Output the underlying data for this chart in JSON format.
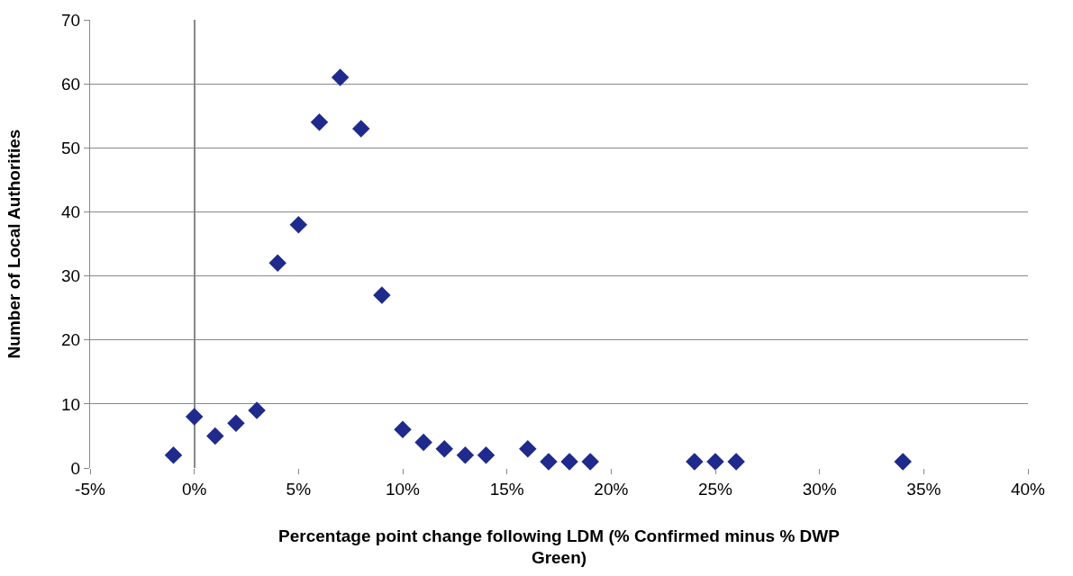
{
  "chart_data": {
    "type": "scatter",
    "xlabel": "Percentage point change following LDM (% Confirmed minus % DWP Green)",
    "ylabel": "Number of Local Authorities",
    "x": [
      -1,
      0,
      1,
      2,
      3,
      4,
      5,
      6,
      7,
      8,
      9,
      10,
      11,
      12,
      13,
      14,
      16,
      17,
      18,
      19,
      24,
      25,
      26,
      34
    ],
    "series": [
      {
        "color": "#1f2a8c",
        "values": [
          2,
          8,
          5,
          7,
          9,
          32,
          38,
          54,
          61,
          53,
          27,
          6,
          4,
          3,
          2,
          2,
          3,
          1,
          1,
          1,
          1,
          1,
          1,
          1
        ]
      }
    ],
    "xlim": [
      -5,
      40
    ],
    "xticks": [
      {
        "value": -5,
        "label": "-5%"
      },
      {
        "value": 0,
        "label": "0%"
      },
      {
        "value": 5,
        "label": "5%"
      },
      {
        "value": 10,
        "label": "10%"
      },
      {
        "value": 15,
        "label": "15%"
      },
      {
        "value": 20,
        "label": "20%"
      },
      {
        "value": 25,
        "label": "25%"
      },
      {
        "value": 30,
        "label": "30%"
      },
      {
        "value": 35,
        "label": "35%"
      },
      {
        "value": 40,
        "label": "40%"
      }
    ],
    "ylim": [
      0,
      70
    ],
    "yticks": [
      0,
      10,
      20,
      30,
      40,
      50,
      60,
      70
    ],
    "grid": "y",
    "marker": "diamond"
  }
}
